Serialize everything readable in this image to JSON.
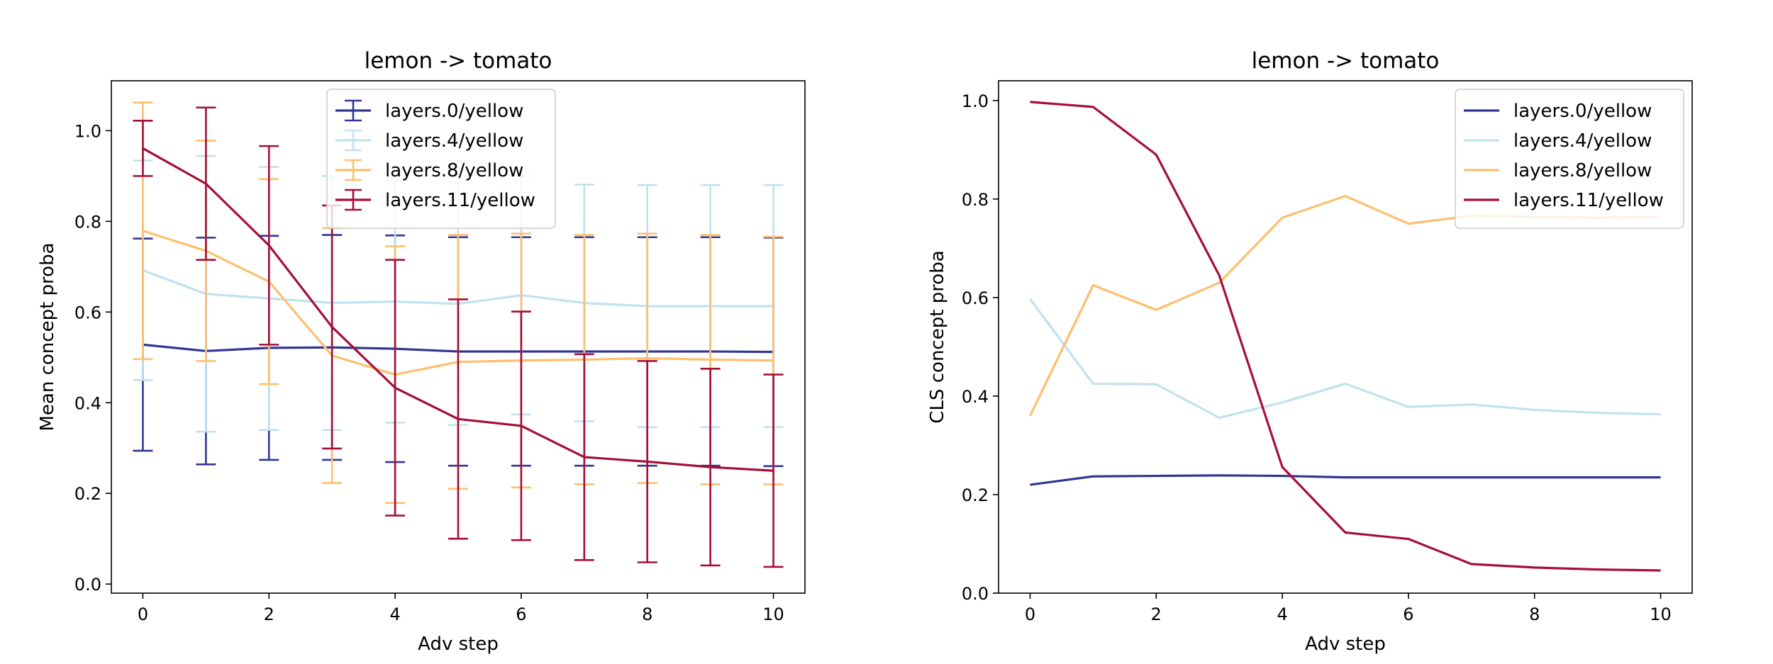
{
  "chart_data": [
    {
      "type": "line",
      "title": "lemon -> tomato",
      "xlabel": "Adv step",
      "ylabel": "Mean concept proba",
      "xlim": [
        -0.5,
        10.5
      ],
      "ylim": [
        -0.02,
        1.11
      ],
      "xticks": [
        0,
        2,
        4,
        6,
        8,
        10
      ],
      "xtick_labels": [
        "0",
        "2",
        "4",
        "6",
        "8",
        "10"
      ],
      "yticks": [
        0.0,
        0.2,
        0.4,
        0.6,
        0.8,
        1.0
      ],
      "ytick_labels": [
        "0.0",
        "0.2",
        "0.4",
        "0.6",
        "0.8",
        "1.0"
      ],
      "legend_position": "top-center",
      "x": [
        0,
        1,
        2,
        3,
        4,
        5,
        6,
        7,
        8,
        9,
        10
      ],
      "series": [
        {
          "name": "layers.0/yellow",
          "color": "#313695",
          "values": [
            0.528,
            0.514,
            0.521,
            0.522,
            0.519,
            0.513,
            0.513,
            0.513,
            0.513,
            0.513,
            0.512
          ],
          "errors": [
            0.234,
            0.25,
            0.247,
            0.248,
            0.25,
            0.252,
            0.252,
            0.252,
            0.252,
            0.252,
            0.252
          ]
        },
        {
          "name": "layers.4/yellow",
          "color": "#BFE2EE",
          "values": [
            0.692,
            0.64,
            0.63,
            0.62,
            0.623,
            0.618,
            0.637,
            0.62,
            0.613,
            0.613,
            0.613
          ],
          "errors": [
            0.242,
            0.304,
            0.29,
            0.28,
            0.267,
            0.267,
            0.263,
            0.261,
            0.267,
            0.267,
            0.267
          ]
        },
        {
          "name": "layers.8/yellow",
          "color": "#FDBF6F",
          "values": [
            0.779,
            0.735,
            0.667,
            0.504,
            0.462,
            0.49,
            0.493,
            0.495,
            0.498,
            0.495,
            0.493
          ],
          "errors": [
            0.283,
            0.243,
            0.226,
            0.281,
            0.283,
            0.28,
            0.28,
            0.275,
            0.275,
            0.275,
            0.273
          ]
        },
        {
          "name": "layers.11/yellow",
          "color": "#A50F37",
          "values": [
            0.961,
            0.883,
            0.747,
            0.567,
            0.433,
            0.364,
            0.349,
            0.28,
            0.27,
            0.258,
            0.25
          ],
          "errors": [
            0.061,
            0.168,
            0.219,
            0.268,
            0.282,
            0.264,
            0.252,
            0.227,
            0.222,
            0.217,
            0.212
          ]
        }
      ]
    },
    {
      "type": "line",
      "title": "lemon -> tomato",
      "xlabel": "Adv step",
      "ylabel": "CLS concept proba",
      "xlim": [
        -0.5,
        10.5
      ],
      "ylim": [
        0.0,
        1.04
      ],
      "xticks": [
        0,
        2,
        4,
        6,
        8,
        10
      ],
      "xtick_labels": [
        "0",
        "2",
        "4",
        "6",
        "8",
        "10"
      ],
      "yticks": [
        0.0,
        0.2,
        0.4,
        0.6,
        0.8,
        1.0
      ],
      "ytick_labels": [
        "0.0",
        "0.2",
        "0.4",
        "0.6",
        "0.8",
        "1.0"
      ],
      "legend_position": "top-right",
      "x": [
        0,
        1,
        2,
        3,
        4,
        5,
        6,
        7,
        8,
        9,
        10
      ],
      "series": [
        {
          "name": "layers.0/yellow",
          "color": "#313695",
          "values": [
            0.22,
            0.237,
            0.238,
            0.239,
            0.238,
            0.235,
            0.235,
            0.235,
            0.235,
            0.235,
            0.235
          ]
        },
        {
          "name": "layers.4/yellow",
          "color": "#BFE2EE",
          "values": [
            0.597,
            0.425,
            0.424,
            0.356,
            0.387,
            0.425,
            0.378,
            0.383,
            0.372,
            0.366,
            0.363
          ]
        },
        {
          "name": "layers.8/yellow",
          "color": "#FDBF6F",
          "values": [
            0.36,
            0.625,
            0.575,
            0.63,
            0.762,
            0.806,
            0.75,
            0.766,
            0.764,
            0.762,
            0.764
          ]
        },
        {
          "name": "layers.11/yellow",
          "color": "#A50F37",
          "values": [
            0.997,
            0.987,
            0.89,
            0.645,
            0.256,
            0.123,
            0.11,
            0.059,
            0.052,
            0.048,
            0.046
          ]
        }
      ]
    }
  ]
}
